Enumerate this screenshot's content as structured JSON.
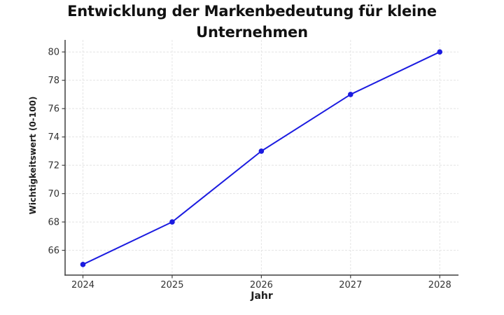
{
  "chart_data": {
    "type": "line",
    "title": "Entwicklung der Markenbedeutung für kleine Unternehmen",
    "xlabel": "Jahr",
    "ylabel": "Wichtigkeitswert (0-100)",
    "x": [
      2024,
      2025,
      2026,
      2027,
      2028
    ],
    "series": [
      {
        "name": "Wichtigkeitswert",
        "values": [
          65,
          68,
          73,
          77,
          80
        ],
        "color": "#1b1be0",
        "marker": "circle"
      }
    ],
    "xticks": [
      2024,
      2025,
      2026,
      2027,
      2028
    ],
    "yticks": [
      66,
      68,
      70,
      72,
      74,
      76,
      78,
      80
    ],
    "xlim": [
      2023.8,
      2028.21
    ],
    "ylim": [
      64.25,
      80.85
    ],
    "grid": true,
    "legend_position": "none",
    "colors": {
      "line": "#1b1be0",
      "grid": "#e4e4e4",
      "axis": "#3f3f3f",
      "tick_label": "#333333",
      "title": "#111111"
    }
  }
}
